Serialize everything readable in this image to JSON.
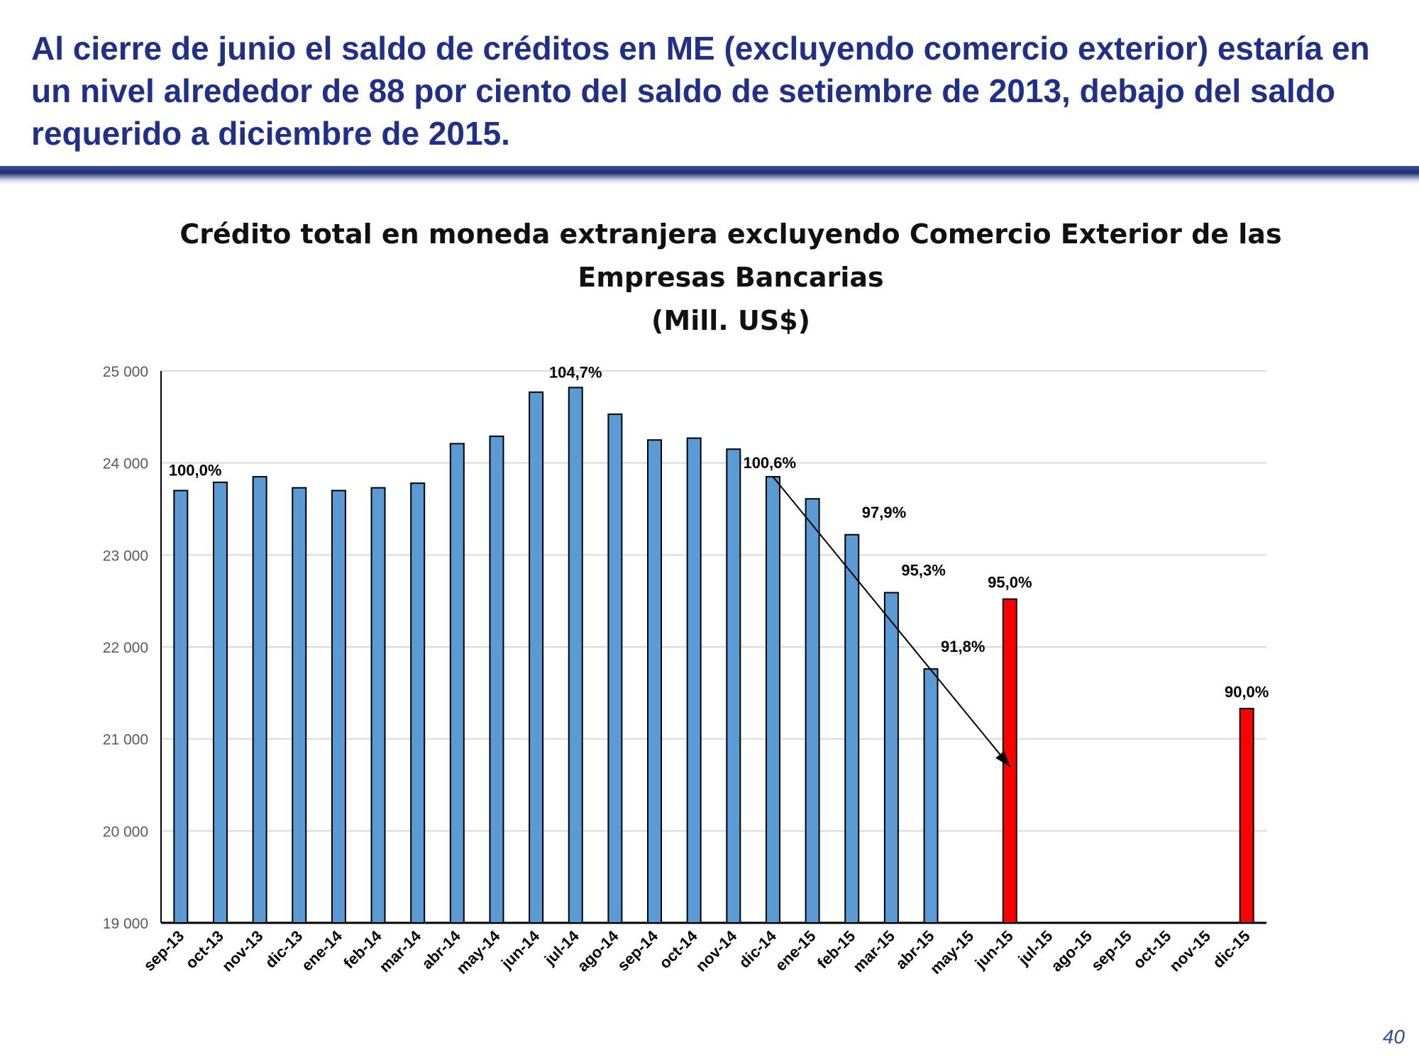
{
  "slide": {
    "title": "Al cierre de junio el saldo de créditos en ME (excluyendo comercio exterior) estaría en un nivel alrededor de 88 por ciento del saldo de setiembre de  2013, debajo del saldo requerido a diciembre de 2015.",
    "title_color": "#1f2f8a",
    "page_number": "40"
  },
  "chart_data": {
    "type": "bar",
    "title_lines": [
      "Crédito total en moneda extranjera excluyendo Comercio Exterior de las",
      "Empresas Bancarias",
      "(Mill. US$)"
    ],
    "categories": [
      "sep-13",
      "oct-13",
      "nov-13",
      "dic-13",
      "ene-14",
      "feb-14",
      "mar-14",
      "abr-14",
      "may-14",
      "jun-14",
      "jul-14",
      "ago-14",
      "sep-14",
      "oct-14",
      "nov-14",
      "dic-14",
      "ene-15",
      "feb-15",
      "mar-15",
      "abr-15",
      "may-15",
      "jun-15",
      "jul-15",
      "ago-15",
      "sep-15",
      "oct-15",
      "nov-15",
      "dic-15"
    ],
    "series": [
      {
        "color": "#5b9bd5",
        "values": [
          23700,
          23790,
          23850,
          23730,
          23700,
          23730,
          23780,
          24210,
          24290,
          24770,
          24820,
          24530,
          24250,
          24270,
          24150,
          23850,
          23610,
          23220,
          22590,
          21760,
          null,
          null,
          null,
          null,
          null,
          null,
          null,
          null
        ]
      },
      {
        "color": "#ff0000",
        "values": [
          null,
          null,
          null,
          null,
          null,
          null,
          null,
          null,
          null,
          null,
          null,
          null,
          null,
          null,
          null,
          null,
          null,
          null,
          null,
          null,
          null,
          22520,
          null,
          null,
          null,
          null,
          null,
          21330
        ]
      }
    ],
    "data_labels": [
      {
        "category": "sep-13",
        "text": "100,0%"
      },
      {
        "category": "jul-14",
        "text": "104,7%"
      },
      {
        "category": "dic-14",
        "text": "100,6%"
      },
      {
        "category": "feb-15",
        "text": "97,9%"
      },
      {
        "category": "mar-15",
        "text": "95,3%"
      },
      {
        "category": "abr-15",
        "text": "91,8%"
      },
      {
        "category": "jun-15",
        "text": "95,0%"
      },
      {
        "category": "dic-15",
        "text": "90,0%"
      }
    ],
    "trend_arrow": {
      "from": {
        "category": "dic-14",
        "value": 23850
      },
      "to": {
        "category": "jun-15",
        "value": 20700
      }
    },
    "yticks": [
      19000,
      20000,
      21000,
      22000,
      23000,
      24000,
      25000
    ],
    "ytick_labels": [
      "19 000",
      "20 000",
      "21 000",
      "22 000",
      "23 000",
      "24 000",
      "25 000"
    ],
    "ylim": [
      19000,
      25000
    ],
    "grid": true,
    "legend": "none"
  }
}
